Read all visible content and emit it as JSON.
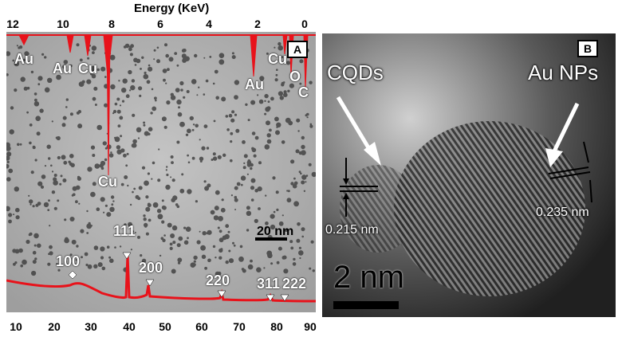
{
  "figure": {
    "panel_a": {
      "label": "A",
      "energy_axis": {
        "title": "Energy (KeV)",
        "ticks": [
          "12",
          "10",
          "8",
          "6",
          "4",
          "2",
          "0"
        ]
      },
      "twotheta_ticks": [
        "10",
        "20",
        "30",
        "40",
        "50",
        "60",
        "70",
        "80",
        "90"
      ],
      "eds_labels": [
        "Au",
        "Au",
        "Cu",
        "Cu",
        "Au",
        "Cu",
        "O",
        "C"
      ],
      "xrd_labels": [
        "100",
        "111",
        "200",
        "220",
        "311",
        "222"
      ],
      "scale_bar": "20 nm",
      "eds_color": "#e8121a",
      "xrd_color": "#e8121a"
    },
    "panel_b": {
      "label": "B",
      "annotations": {
        "left": "CQDs",
        "right": "Au NPs",
        "left_spacing": "0.215 nm",
        "right_spacing": "0.235 nm"
      },
      "scale_bar": "2 nm"
    }
  }
}
